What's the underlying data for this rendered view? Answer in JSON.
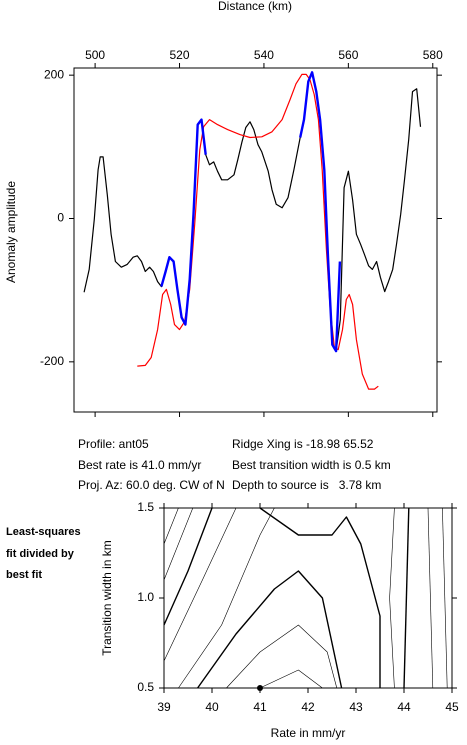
{
  "chart_data": [
    {
      "type": "line",
      "x_label": "Distance (km)",
      "y_label": "Anomaly amplitude",
      "xlim": [
        495,
        581
      ],
      "xticks": [
        500,
        520,
        540,
        560,
        580
      ],
      "ylim": [
        -270,
        210
      ],
      "yticks": [
        -200,
        0,
        200
      ],
      "series": [
        {
          "color": "#000000",
          "x": [
            497.4,
            498.6,
            499.8,
            500.7,
            501.2,
            501.9,
            502.9,
            503.8,
            504.8,
            506.2,
            507.6,
            509.0,
            510.0,
            511.0,
            511.9,
            512.9,
            513.8,
            514.8,
            515.7,
            516.7,
            517.6,
            518.6,
            519.5,
            520.5,
            521.4,
            522.4,
            523.3,
            524.3,
            525.2,
            526.2,
            527.1,
            528.1,
            529.0,
            530.0,
            531.4,
            532.9,
            533.8,
            534.8,
            535.7,
            536.7,
            537.6,
            538.6,
            539.5,
            541.0,
            541.9,
            542.9,
            544.3,
            545.7,
            547.1,
            548.6,
            549.5,
            550.5,
            551.4,
            552.4,
            553.3,
            554.3,
            555.2,
            556.2,
            557.1,
            558.1,
            559.0,
            560.0,
            561.0,
            561.9,
            562.9,
            563.8,
            564.8,
            565.7,
            566.7,
            567.6,
            568.6,
            569.5,
            570.5,
            571.4,
            572.4,
            573.3,
            574.3,
            575.2,
            576.2,
            577.1
          ],
          "values": [
            -103,
            -71,
            -1,
            68,
            86,
            86,
            33,
            -22,
            -60,
            -68,
            -64,
            -54,
            -52,
            -60,
            -74,
            -68,
            -74,
            -88,
            -95,
            -74,
            -54,
            -60,
            -99,
            -138,
            -148,
            -85,
            6,
            131,
            138,
            89,
            75,
            79,
            66,
            54,
            54,
            61,
            82,
            107,
            127,
            135,
            124,
            103,
            93,
            66,
            40,
            20,
            15,
            29,
            68,
            113,
            138,
            191,
            204,
            177,
            138,
            68,
            -57,
            -176,
            -185,
            -141,
            43,
            66,
            26,
            -22,
            -36,
            -50,
            -66,
            -71,
            -60,
            -82,
            -102,
            -88,
            -71,
            -36,
            6,
            54,
            110,
            177,
            181,
            128
          ]
        },
        {
          "color": "#ff0000",
          "x": [
            510,
            511.9,
            513.3,
            514.8,
            516,
            516.9,
            517.9,
            518.8,
            520,
            521.2,
            522.4,
            523.6,
            524.8,
            525.7,
            527.1,
            529,
            531.4,
            534.3,
            536.7,
            539.5,
            541.9,
            544.3,
            546.2,
            547.6,
            549,
            550,
            550.9,
            551.9,
            552.9,
            553.8,
            554.8,
            555.7,
            556.7,
            557.6,
            558.6,
            559.5,
            560.2,
            561,
            561.9,
            563.3,
            564.8,
            566.2,
            567.1
          ],
          "values": [
            -206,
            -205,
            -194,
            -155,
            -106,
            -99,
            -120,
            -148,
            -155,
            -144,
            -99,
            -8,
            96,
            128,
            138,
            131,
            124,
            117,
            113,
            114,
            121,
            138,
            166,
            188,
            201,
            201,
            194,
            173,
            138,
            68,
            -43,
            -127,
            -180,
            -183,
            -155,
            -113,
            -106,
            -120,
            -169,
            -217,
            -238,
            -238,
            -234
          ]
        },
        {
          "color": "#0000ff",
          "x": [
            515.7,
            516.7,
            517.6,
            518.6,
            519.5,
            520.5,
            521.4,
            522.4,
            523.3,
            524.3,
            525.2,
            526.2,
            537,
            548.6,
            549.5,
            550.5,
            551.4,
            552.4,
            553.3,
            554.3,
            555.2,
            556.2,
            557.1,
            558.0
          ],
          "values": [
            -95,
            -74,
            -54,
            -60,
            -99,
            -138,
            -148,
            -85,
            6,
            131,
            138,
            89,
            null,
            113,
            138,
            191,
            204,
            177,
            138,
            68,
            -57,
            -176,
            -185,
            -60
          ]
        }
      ]
    },
    {
      "type": "contour",
      "x_label": "Rate in mm/yr",
      "y_label": "Transition width in km",
      "xlim": [
        39,
        45
      ],
      "xticks": [
        39,
        40,
        41,
        42,
        43,
        44,
        45
      ],
      "ylim": [
        0.5,
        1.5
      ],
      "yticks": [
        0.5,
        {
          "value": 1,
          "label": "1.0"
        },
        1.5
      ],
      "point": {
        "x": 41,
        "y": 0.5
      },
      "series": [
        {
          "color": "#000000",
          "thick": false,
          "x": [
            39,
            39.3
          ],
          "values": [
            1.3,
            1.5
          ]
        },
        {
          "color": "#000000",
          "thick": false,
          "x": [
            39,
            39.6
          ],
          "values": [
            1.1,
            1.5
          ]
        },
        {
          "color": "#000000",
          "thick": true,
          "x": [
            39,
            39.5,
            40
          ],
          "values": [
            0.85,
            1.15,
            1.5
          ]
        },
        {
          "color": "#000000",
          "thick": false,
          "x": [
            39,
            39.8,
            40.5
          ],
          "values": [
            0.65,
            1.1,
            1.5
          ]
        },
        {
          "color": "#000000",
          "thick": false,
          "x": [
            39.3,
            40.2,
            41,
            41.3
          ],
          "values": [
            0.5,
            0.85,
            1.35,
            1.5
          ]
        },
        {
          "color": "#000000",
          "thick": true,
          "x": [
            39.7,
            40.5,
            41.3,
            41.8,
            42.3,
            42.7
          ],
          "values": [
            0.5,
            0.8,
            1.05,
            1.15,
            1.0,
            0.5
          ]
        },
        {
          "color": "#000000",
          "thick": false,
          "x": [
            40.3,
            41,
            41.8,
            42.4,
            42.6
          ],
          "values": [
            0.5,
            0.7,
            0.85,
            0.7,
            0.5
          ]
        },
        {
          "color": "#000000",
          "thick": false,
          "x": [
            41,
            41.8,
            42.3
          ],
          "values": [
            0.5,
            0.6,
            0.5
          ]
        },
        {
          "color": "#000000",
          "thick": true,
          "x": [
            41,
            41.8,
            42.5,
            42.8,
            43.1,
            43.5,
            43.5
          ],
          "values": [
            1.5,
            1.35,
            1.35,
            1.45,
            1.3,
            0.9,
            0.5
          ]
        },
        {
          "color": "#000000",
          "thick": false,
          "x": [
            43.8,
            43.7,
            43.8
          ],
          "values": [
            1.5,
            1.0,
            0.5
          ]
        },
        {
          "color": "#000000",
          "thick": true,
          "x": [
            44.1,
            44.0
          ],
          "values": [
            1.5,
            0.5
          ]
        },
        {
          "color": "#000000",
          "thick": false,
          "x": [
            44.5,
            44.6
          ],
          "values": [
            1.5,
            0.5
          ]
        },
        {
          "color": "#000000",
          "thick": false,
          "x": [
            44.8,
            44.9
          ],
          "values": [
            1.5,
            0.5
          ]
        }
      ]
    }
  ],
  "info": {
    "left": [
      "Profile: ant05",
      "Best rate is 41.0 mm/yr",
      "Proj. Az: 60.0 deg. CW of N"
    ],
    "right": [
      "Ridge Xing is -18.98 65.52",
      "Best transition width is 0.5 km",
      "Depth to source is   3.78 km"
    ]
  },
  "note": [
    "Least-squares",
    "fit divided by",
    "best fit"
  ]
}
